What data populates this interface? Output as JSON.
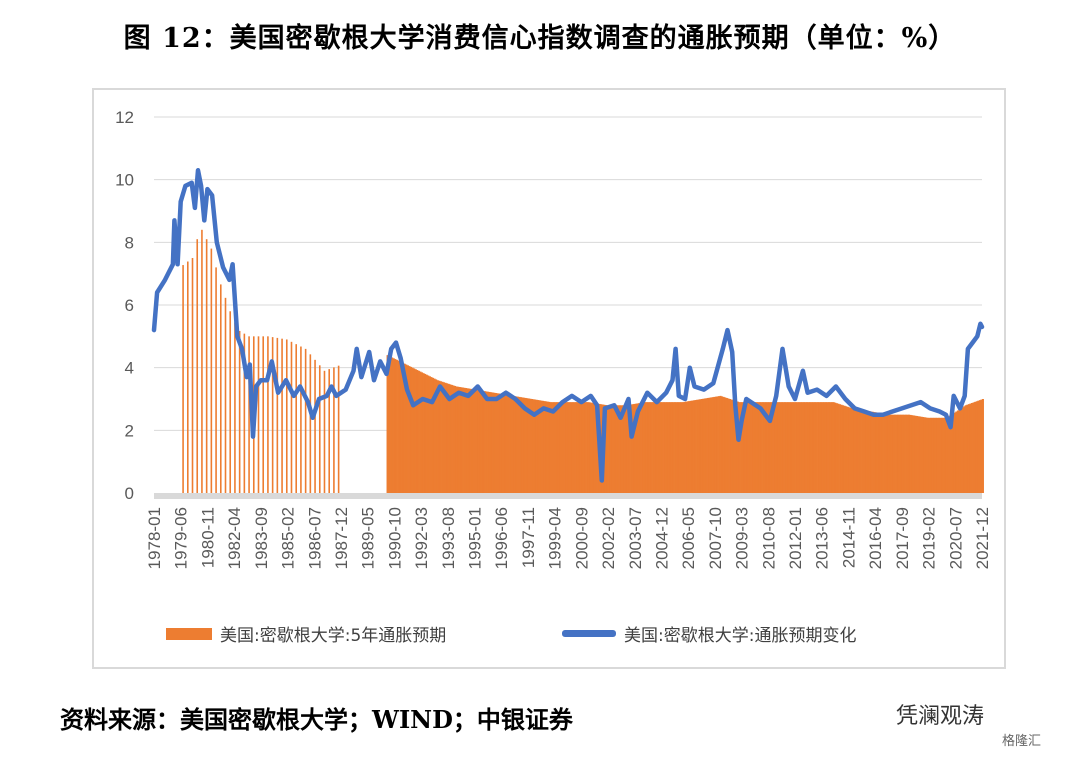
{
  "header": {
    "title": "图 12：美国密歇根大学消费信心指数调查的通胀预期（单位：%）"
  },
  "footer": {
    "source": "资料来源：美国密歇根大学；WIND；中银证券",
    "watermark": "凭澜观涛",
    "watermark_sub": "格隆汇"
  },
  "chart_data": {
    "type": "bar+line",
    "ylim": [
      0,
      12
    ],
    "yticks": [
      "0",
      "2",
      "4",
      "6",
      "8",
      "10",
      "12"
    ],
    "xlim": [
      "1978-01",
      "2021-12"
    ],
    "xticks": [
      "1978-01",
      "1979-06",
      "1980-11",
      "1982-04",
      "1983-09",
      "1985-02",
      "1986-07",
      "1987-12",
      "1989-05",
      "1990-10",
      "1992-03",
      "1993-08",
      "1995-01",
      "1996-06",
      "1997-11",
      "1999-04",
      "2000-09",
      "2002-02",
      "2003-07",
      "2004-12",
      "2006-05",
      "2007-10",
      "2009-03",
      "2010-08",
      "2012-01",
      "2013-06",
      "2014-11",
      "2016-04",
      "2017-09",
      "2019-02",
      "2020-07",
      "2021-12"
    ],
    "grid": true,
    "legend_position": "bottom",
    "series": [
      {
        "name": "美国:密歇根大学:5年通胀预期",
        "kind": "bar",
        "color": "#ed7d31",
        "gaps": [
          [
            "1978-01",
            "1979-04"
          ],
          [
            "1988-01",
            "1990-04"
          ]
        ],
        "points": [
          [
            "1979-05",
            7.2
          ],
          [
            "1980-01",
            7.5
          ],
          [
            "1980-06",
            8.5
          ],
          [
            "1981-01",
            7.8
          ],
          [
            "1981-06",
            6.8
          ],
          [
            "1982-01",
            5.8
          ],
          [
            "1982-06",
            5.2
          ],
          [
            "1983-01",
            5.0
          ],
          [
            "1984-01",
            5.0
          ],
          [
            "1985-01",
            4.9
          ],
          [
            "1986-01",
            4.6
          ],
          [
            "1987-01",
            3.9
          ],
          [
            "1987-12",
            4.1
          ],
          [
            "1990-05",
            4.4
          ],
          [
            "1991-01",
            4.2
          ],
          [
            "1992-01",
            3.9
          ],
          [
            "1993-01",
            3.6
          ],
          [
            "1994-01",
            3.4
          ],
          [
            "1995-01",
            3.3
          ],
          [
            "1996-01",
            3.2
          ],
          [
            "1997-01",
            3.1
          ],
          [
            "1998-01",
            3.0
          ],
          [
            "1999-01",
            2.9
          ],
          [
            "2000-01",
            2.9
          ],
          [
            "2001-01",
            2.9
          ],
          [
            "2002-01",
            2.8
          ],
          [
            "2003-01",
            2.8
          ],
          [
            "2004-01",
            2.9
          ],
          [
            "2005-01",
            2.9
          ],
          [
            "2006-01",
            2.9
          ],
          [
            "2007-01",
            3.0
          ],
          [
            "2008-01",
            3.1
          ],
          [
            "2009-01",
            2.9
          ],
          [
            "2010-01",
            2.9
          ],
          [
            "2011-01",
            2.9
          ],
          [
            "2012-01",
            2.9
          ],
          [
            "2013-01",
            2.9
          ],
          [
            "2014-01",
            2.9
          ],
          [
            "2015-01",
            2.7
          ],
          [
            "2016-01",
            2.6
          ],
          [
            "2017-01",
            2.5
          ],
          [
            "2018-01",
            2.5
          ],
          [
            "2019-01",
            2.4
          ],
          [
            "2020-01",
            2.4
          ],
          [
            "2020-07",
            2.6
          ],
          [
            "2021-01",
            2.8
          ],
          [
            "2021-12",
            3.0
          ]
        ]
      },
      {
        "name": "美国:密歇根大学:通胀预期变化",
        "kind": "line",
        "color": "#4472c4",
        "points": [
          [
            "1978-01",
            5.2
          ],
          [
            "1978-03",
            6.4
          ],
          [
            "1978-08",
            6.8
          ],
          [
            "1978-10",
            7.0
          ],
          [
            "1979-01",
            7.3
          ],
          [
            "1979-02",
            8.7
          ],
          [
            "1979-04",
            7.3
          ],
          [
            "1979-06",
            9.3
          ],
          [
            "1979-09",
            9.8
          ],
          [
            "1980-01",
            9.9
          ],
          [
            "1980-03",
            9.1
          ],
          [
            "1980-05",
            10.3
          ],
          [
            "1980-07",
            9.8
          ],
          [
            "1980-09",
            8.7
          ],
          [
            "1980-11",
            9.7
          ],
          [
            "1981-02",
            9.5
          ],
          [
            "1981-05",
            8.0
          ],
          [
            "1981-09",
            7.2
          ],
          [
            "1982-01",
            6.8
          ],
          [
            "1982-03",
            7.3
          ],
          [
            "1982-06",
            5.0
          ],
          [
            "1982-09",
            4.6
          ],
          [
            "1982-12",
            3.7
          ],
          [
            "1983-02",
            4.1
          ],
          [
            "1983-04",
            1.8
          ],
          [
            "1983-06",
            3.4
          ],
          [
            "1983-09",
            3.6
          ],
          [
            "1984-01",
            3.6
          ],
          [
            "1984-04",
            4.2
          ],
          [
            "1984-08",
            3.2
          ],
          [
            "1985-01",
            3.6
          ],
          [
            "1985-06",
            3.1
          ],
          [
            "1985-10",
            3.4
          ],
          [
            "1986-03",
            2.9
          ],
          [
            "1986-06",
            2.4
          ],
          [
            "1986-10",
            3.0
          ],
          [
            "1987-03",
            3.1
          ],
          [
            "1987-06",
            3.4
          ],
          [
            "1987-09",
            3.1
          ],
          [
            "1988-03",
            3.3
          ],
          [
            "1988-08",
            3.9
          ],
          [
            "1988-10",
            4.6
          ],
          [
            "1989-01",
            3.7
          ],
          [
            "1989-06",
            4.5
          ],
          [
            "1989-09",
            3.6
          ],
          [
            "1990-01",
            4.2
          ],
          [
            "1990-05",
            3.8
          ],
          [
            "1990-08",
            4.6
          ],
          [
            "1990-11",
            4.8
          ],
          [
            "1991-02",
            4.3
          ],
          [
            "1991-06",
            3.3
          ],
          [
            "1991-10",
            2.8
          ],
          [
            "1992-04",
            3.0
          ],
          [
            "1992-10",
            2.9
          ],
          [
            "1993-03",
            3.4
          ],
          [
            "1993-09",
            3.0
          ],
          [
            "1994-03",
            3.2
          ],
          [
            "1994-09",
            3.1
          ],
          [
            "1995-03",
            3.4
          ],
          [
            "1995-09",
            3.0
          ],
          [
            "1996-03",
            3.0
          ],
          [
            "1996-09",
            3.2
          ],
          [
            "1997-03",
            3.0
          ],
          [
            "1997-09",
            2.7
          ],
          [
            "1998-03",
            2.5
          ],
          [
            "1998-09",
            2.7
          ],
          [
            "1999-03",
            2.6
          ],
          [
            "1999-09",
            2.9
          ],
          [
            "2000-03",
            3.1
          ],
          [
            "2000-09",
            2.9
          ],
          [
            "2001-03",
            3.1
          ],
          [
            "2001-07",
            2.8
          ],
          [
            "2001-10",
            0.4
          ],
          [
            "2001-12",
            2.7
          ],
          [
            "2002-06",
            2.8
          ],
          [
            "2002-10",
            2.4
          ],
          [
            "2003-03",
            3.0
          ],
          [
            "2003-05",
            1.8
          ],
          [
            "2003-09",
            2.6
          ],
          [
            "2004-03",
            3.2
          ],
          [
            "2004-09",
            2.9
          ],
          [
            "2005-03",
            3.2
          ],
          [
            "2005-07",
            3.6
          ],
          [
            "2005-09",
            4.6
          ],
          [
            "2005-11",
            3.1
          ],
          [
            "2006-03",
            3.0
          ],
          [
            "2006-06",
            4.0
          ],
          [
            "2006-09",
            3.4
          ],
          [
            "2007-03",
            3.3
          ],
          [
            "2007-09",
            3.5
          ],
          [
            "2008-03",
            4.6
          ],
          [
            "2008-06",
            5.2
          ],
          [
            "2008-09",
            4.5
          ],
          [
            "2008-11",
            2.8
          ],
          [
            "2009-01",
            1.7
          ],
          [
            "2009-03",
            2.3
          ],
          [
            "2009-06",
            3.0
          ],
          [
            "2009-09",
            2.9
          ],
          [
            "2010-03",
            2.7
          ],
          [
            "2010-09",
            2.3
          ],
          [
            "2011-01",
            3.1
          ],
          [
            "2011-05",
            4.6
          ],
          [
            "2011-09",
            3.4
          ],
          [
            "2012-01",
            3.0
          ],
          [
            "2012-06",
            3.9
          ],
          [
            "2012-09",
            3.2
          ],
          [
            "2013-03",
            3.3
          ],
          [
            "2013-09",
            3.1
          ],
          [
            "2014-03",
            3.4
          ],
          [
            "2014-09",
            3.0
          ],
          [
            "2015-03",
            2.7
          ],
          [
            "2015-09",
            2.6
          ],
          [
            "2016-03",
            2.5
          ],
          [
            "2016-09",
            2.5
          ],
          [
            "2017-03",
            2.6
          ],
          [
            "2017-09",
            2.7
          ],
          [
            "2018-03",
            2.8
          ],
          [
            "2018-09",
            2.9
          ],
          [
            "2019-03",
            2.7
          ],
          [
            "2019-09",
            2.6
          ],
          [
            "2020-01",
            2.5
          ],
          [
            "2020-04",
            2.1
          ],
          [
            "2020-06",
            3.1
          ],
          [
            "2020-10",
            2.7
          ],
          [
            "2021-01",
            3.1
          ],
          [
            "2021-03",
            4.6
          ],
          [
            "2021-06",
            4.8
          ],
          [
            "2021-09",
            5.0
          ],
          [
            "2021-11",
            5.4
          ],
          [
            "2021-12",
            5.3
          ]
        ]
      }
    ]
  }
}
